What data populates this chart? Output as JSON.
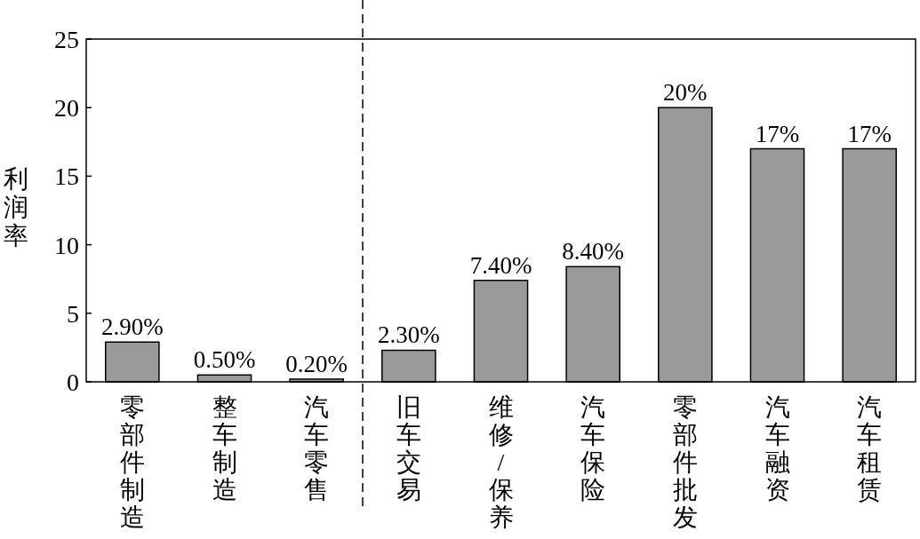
{
  "chart_data": {
    "type": "bar",
    "ylabel": "利润率",
    "categories": [
      "零部件制造",
      "整车制造",
      "汽车零售",
      "旧车交易",
      "维修/保养",
      "汽车保险",
      "零部件批发",
      "汽车融资",
      "汽车租赁"
    ],
    "values": [
      2.9,
      0.5,
      0.2,
      2.3,
      7.4,
      8.4,
      20,
      17,
      17
    ],
    "value_labels": [
      "2.90%",
      "0.50%",
      "0.20%",
      "2.30%",
      "7.40%",
      "8.40%",
      "20%",
      "17%",
      "17%"
    ],
    "color": "#9a9a9a",
    "ylim": [
      0,
      25
    ],
    "yticks": [
      0,
      5,
      10,
      15,
      20,
      25
    ],
    "grid": false
  }
}
